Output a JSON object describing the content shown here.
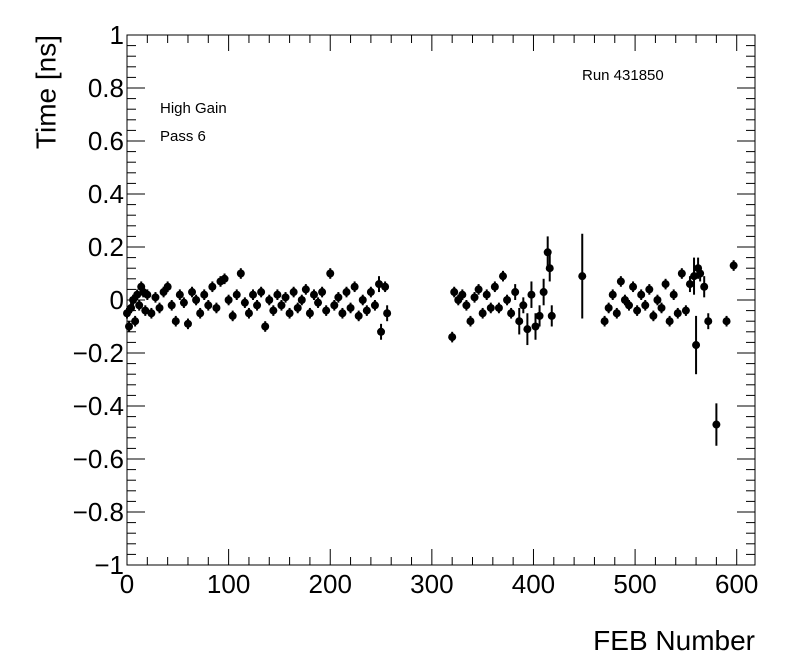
{
  "chart_data": {
    "type": "scatter",
    "xlabel": "FEB Number",
    "ylabel": "Time [ns]",
    "annotations": [
      "Run 431850",
      "High Gain",
      "Pass 6"
    ],
    "color": "#000000",
    "xlim": [
      0,
      618
    ],
    "xticks": [
      0,
      100,
      200,
      300,
      400,
      500,
      600
    ],
    "ylim": [
      -1,
      1
    ],
    "yticks": [
      {
        "value": -1,
        "label": "−1"
      },
      {
        "value": -0.8,
        "label": "−0.8"
      },
      {
        "value": -0.6,
        "label": "−0.6"
      },
      {
        "value": -0.4,
        "label": "−0.4"
      },
      {
        "value": -0.2,
        "label": "−0.2"
      },
      0,
      0.2,
      0.4,
      0.6,
      0.8,
      1
    ],
    "x": [
      0,
      2,
      4,
      6,
      8,
      10,
      12,
      14,
      16,
      18,
      20,
      24,
      28,
      32,
      36,
      40,
      44,
      48,
      52,
      56,
      60,
      64,
      68,
      72,
      76,
      80,
      84,
      88,
      92,
      96,
      100,
      104,
      108,
      112,
      116,
      120,
      124,
      128,
      132,
      136,
      140,
      144,
      148,
      152,
      156,
      160,
      164,
      168,
      172,
      176,
      180,
      184,
      188,
      192,
      196,
      200,
      204,
      208,
      212,
      216,
      220,
      224,
      228,
      232,
      236,
      240,
      244,
      248,
      250,
      254,
      256,
      320,
      322,
      326,
      330,
      334,
      338,
      342,
      346,
      350,
      354,
      358,
      362,
      366,
      370,
      374,
      378,
      382,
      386,
      390,
      394,
      398,
      402,
      406,
      410,
      414,
      416,
      418,
      448,
      470,
      474,
      478,
      482,
      486,
      490,
      494,
      498,
      502,
      506,
      510,
      514,
      518,
      522,
      526,
      530,
      534,
      538,
      542,
      546,
      550,
      554,
      558,
      560,
      562,
      564,
      568,
      572,
      580,
      590,
      597
    ],
    "values": [
      -0.05,
      -0.1,
      -0.03,
      0.0,
      -0.08,
      0.02,
      -0.02,
      0.05,
      0.03,
      -0.04,
      0.02,
      -0.05,
      0.01,
      -0.03,
      0.03,
      0.05,
      -0.02,
      -0.08,
      0.02,
      -0.01,
      -0.09,
      0.03,
      0.0,
      -0.05,
      0.02,
      -0.02,
      0.05,
      -0.03,
      0.07,
      0.08,
      0.0,
      -0.06,
      0.02,
      0.1,
      -0.01,
      -0.05,
      0.02,
      -0.02,
      0.03,
      -0.1,
      0.0,
      -0.04,
      0.02,
      -0.02,
      0.01,
      -0.05,
      0.03,
      -0.03,
      0.0,
      0.04,
      -0.05,
      0.02,
      -0.01,
      0.03,
      -0.04,
      0.1,
      -0.02,
      0.01,
      -0.05,
      0.03,
      -0.03,
      0.05,
      -0.06,
      0.0,
      -0.04,
      0.03,
      -0.02,
      0.06,
      -0.12,
      0.05,
      -0.05,
      -0.14,
      0.03,
      0.0,
      0.02,
      -0.02,
      -0.08,
      0.01,
      0.04,
      -0.05,
      0.02,
      -0.03,
      0.05,
      -0.03,
      0.09,
      0.0,
      -0.05,
      0.03,
      -0.08,
      -0.02,
      -0.11,
      0.02,
      -0.1,
      -0.06,
      0.03,
      0.18,
      0.12,
      -0.06,
      0.09,
      -0.08,
      -0.03,
      0.02,
      -0.05,
      0.07,
      0.0,
      -0.02,
      0.05,
      -0.04,
      0.02,
      -0.02,
      0.04,
      -0.06,
      0.0,
      -0.03,
      0.06,
      -0.08,
      0.02,
      -0.05,
      0.1,
      -0.04,
      0.06,
      0.09,
      -0.17,
      0.12,
      0.1,
      0.05,
      -0.08,
      -0.47,
      -0.08,
      0.13
    ],
    "errors": [
      0.02,
      0.02,
      0.02,
      0.02,
      0.02,
      0.02,
      0.02,
      0.02,
      0.02,
      0.02,
      0.02,
      0.02,
      0.02,
      0.02,
      0.02,
      0.02,
      0.02,
      0.02,
      0.02,
      0.02,
      0.02,
      0.02,
      0.02,
      0.02,
      0.02,
      0.02,
      0.02,
      0.02,
      0.02,
      0.02,
      0.02,
      0.02,
      0.02,
      0.02,
      0.02,
      0.02,
      0.02,
      0.02,
      0.02,
      0.02,
      0.02,
      0.02,
      0.02,
      0.02,
      0.02,
      0.02,
      0.02,
      0.02,
      0.02,
      0.02,
      0.02,
      0.02,
      0.02,
      0.02,
      0.02,
      0.02,
      0.02,
      0.02,
      0.02,
      0.02,
      0.02,
      0.02,
      0.02,
      0.02,
      0.02,
      0.02,
      0.02,
      0.03,
      0.03,
      0.02,
      0.03,
      0.02,
      0.02,
      0.02,
      0.02,
      0.02,
      0.02,
      0.02,
      0.02,
      0.02,
      0.02,
      0.02,
      0.02,
      0.02,
      0.02,
      0.02,
      0.02,
      0.03,
      0.05,
      0.03,
      0.06,
      0.05,
      0.05,
      0.04,
      0.05,
      0.06,
      0.05,
      0.04,
      0.16,
      0.02,
      0.02,
      0.02,
      0.02,
      0.02,
      0.02,
      0.02,
      0.02,
      0.02,
      0.02,
      0.02,
      0.02,
      0.02,
      0.02,
      0.02,
      0.02,
      0.02,
      0.02,
      0.02,
      0.02,
      0.02,
      0.03,
      0.07,
      0.11,
      0.04,
      0.03,
      0.04,
      0.03,
      0.08,
      0.02,
      0.02
    ]
  }
}
